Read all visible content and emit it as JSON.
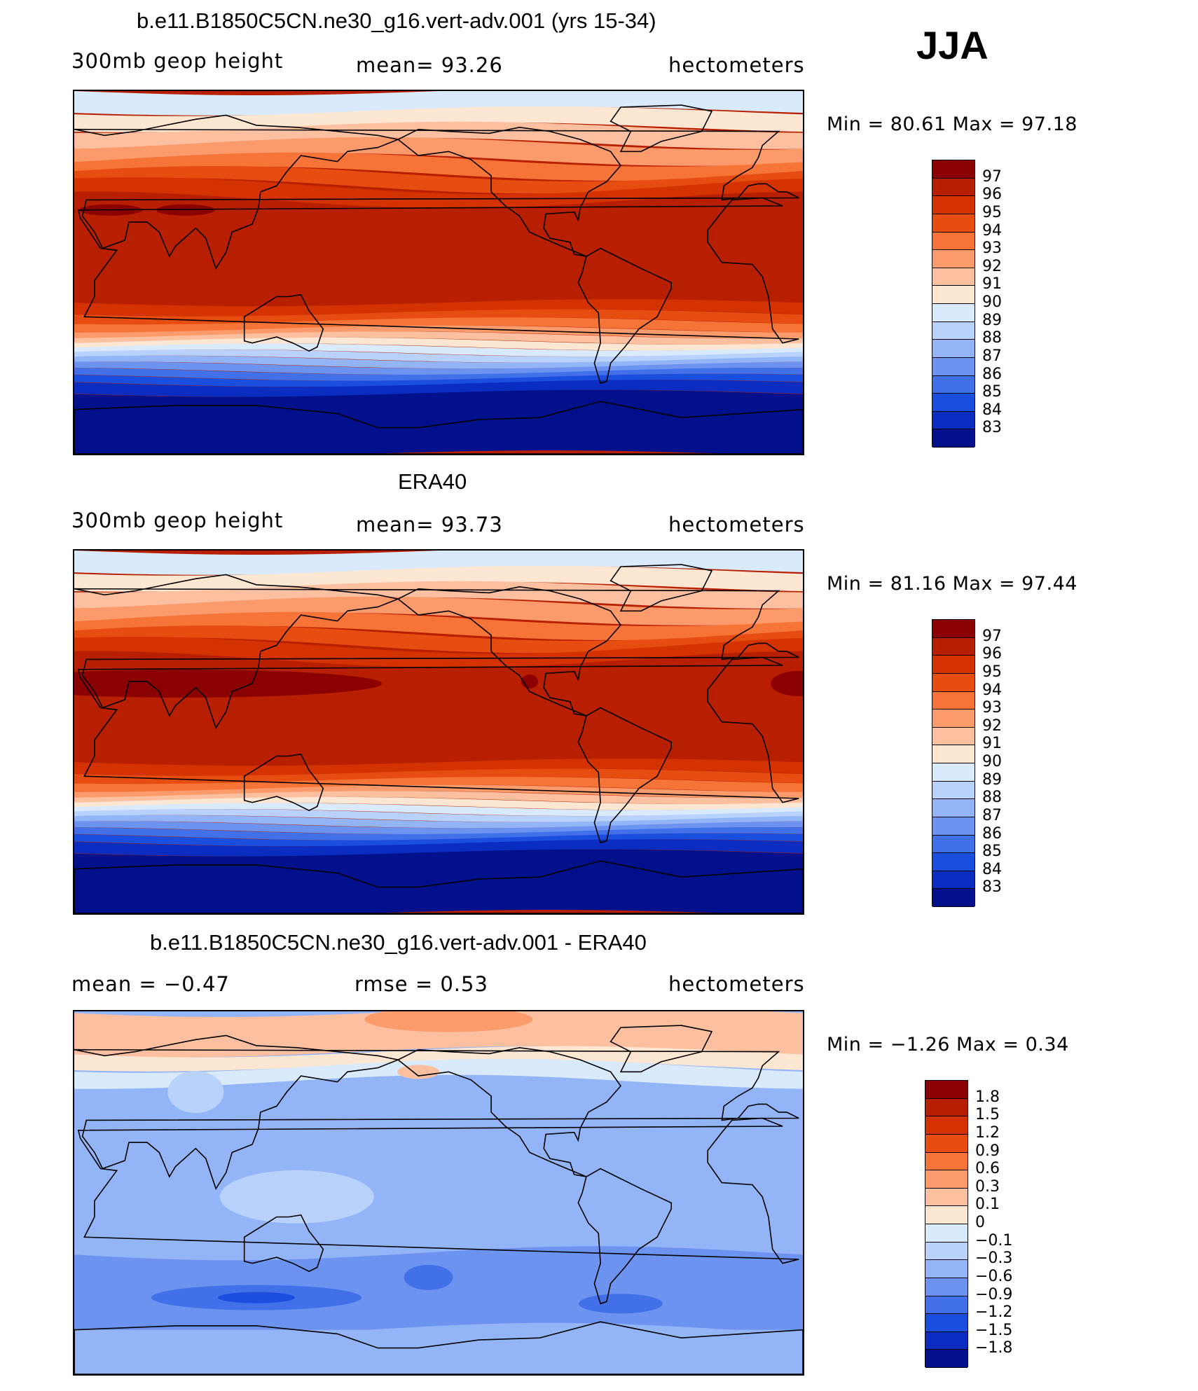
{
  "season": "JJA",
  "units": "hectometers",
  "panels": [
    {
      "title": "b.e11.B1850C5CN.ne30_g16.vert-adv.001 (yrs 15-34)",
      "left_label": "300mb geop height",
      "center_label": "mean=   93.26",
      "right_label": "hectometers",
      "minmax": "Min =   80.61  Max =    97.18",
      "kind": "model",
      "colorbar_levels": [
        "97",
        "96",
        "95",
        "94",
        "93",
        "92",
        "91",
        "90",
        "89",
        "88",
        "87",
        "86",
        "85",
        "84",
        "83"
      ]
    },
    {
      "title": "ERA40",
      "left_label": "300mb geop height",
      "center_label": "mean=   93.73",
      "right_label": "hectometers",
      "minmax": "Min =   81.16  Max =    97.44",
      "kind": "obs",
      "colorbar_levels": [
        "97",
        "96",
        "95",
        "94",
        "93",
        "92",
        "91",
        "90",
        "89",
        "88",
        "87",
        "86",
        "85",
        "84",
        "83"
      ]
    },
    {
      "title": "b.e11.B1850C5CN.ne30_g16.vert-adv.001 - ERA40",
      "left_label": "mean =    −0.47",
      "center_label": "rmse =     0.53",
      "right_label": "hectometers",
      "minmax": "Min =   −1.26  Max =     0.34",
      "kind": "diff",
      "colorbar_levels": [
        "1.8",
        "1.5",
        "1.2",
        "0.9",
        "0.6",
        "0.3",
        "0.1",
        "0",
        "−0.1",
        "−0.3",
        "−0.6",
        "−0.9",
        "−1.2",
        "−1.5",
        "−1.8"
      ]
    }
  ],
  "colors": {
    "palette": [
      "#8b0000",
      "#b81f00",
      "#d43200",
      "#e74c10",
      "#f77438",
      "#fb9a6b",
      "#fcc0a0",
      "#fde6d2",
      "#d8eafc",
      "#b8d2fb",
      "#93b5f7",
      "#6d93f0",
      "#4170e9",
      "#1a4ede",
      "#0a2cc0",
      "#03108c"
    ]
  }
}
